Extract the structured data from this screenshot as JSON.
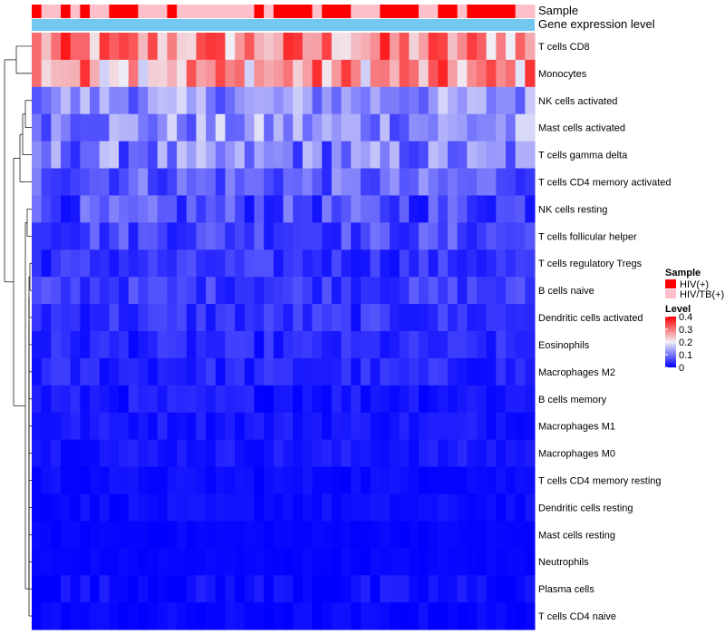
{
  "chart_data": {
    "type": "heatmap",
    "title": "",
    "annotations": {
      "sample_label": "Sample",
      "expression_label": "Gene expression level",
      "sample_groups": [
        "HIV(+)",
        "HIV/TB(+)"
      ],
      "sample_pattern": [
        0,
        1,
        1,
        0,
        1,
        0,
        1,
        1,
        0,
        0,
        0,
        1,
        1,
        1,
        0,
        1,
        1,
        1,
        1,
        1,
        1,
        1,
        1,
        0,
        1,
        0,
        0,
        0,
        0,
        1,
        0,
        0,
        0,
        1,
        1,
        1,
        0,
        0,
        0,
        0,
        1,
        1,
        0,
        0,
        1,
        0,
        0,
        0,
        0,
        0,
        1,
        1
      ],
      "expression_color": "#72c8ef"
    },
    "rows": [
      "T cells CD8",
      "Monocytes",
      "NK cells activated",
      "Mast cells activated",
      "T cells gamma delta",
      "T cells CD4 memory activated",
      "NK cells resting",
      "T cells follicular helper",
      "T cells regulatory  Tregs",
      "B cells naive",
      "Dendritic cells activated",
      "Eosinophils",
      "Macrophages M2",
      "B cells memory",
      "Macrophages M1",
      "Macrophages M0",
      "T cells CD4 memory resting",
      "Dendritic cells resting",
      "Mast cells resting",
      "Neutrophils",
      "Plasma cells",
      "T cells CD4 naive"
    ],
    "n_columns": 52,
    "row_means": [
      0.28,
      0.27,
      0.12,
      0.12,
      0.1,
      0.08,
      0.06,
      0.06,
      0.04,
      0.05,
      0.04,
      0.03,
      0.03,
      0.02,
      0.02,
      0.02,
      0.01,
      0.01,
      0.005,
      0.005,
      0.01,
      0.005
    ],
    "row_spread": [
      0.1,
      0.1,
      0.06,
      0.07,
      0.07,
      0.05,
      0.05,
      0.04,
      0.03,
      0.03,
      0.03,
      0.025,
      0.025,
      0.02,
      0.015,
      0.015,
      0.01,
      0.01,
      0.005,
      0.005,
      0.02,
      0.01
    ],
    "color_scale": {
      "min": 0,
      "mid": 0.2,
      "max": 0.4,
      "low": "#0000ff",
      "mid_color": "#f0f0f8",
      "high": "#ff0000"
    },
    "legend": {
      "sample_title": "Sample",
      "level_title": "Level",
      "ticks": [
        "0.4",
        "0.3",
        "0.2",
        "0.1",
        "0"
      ],
      "tick_values": [
        0.4,
        0.3,
        0.2,
        0.1,
        0
      ],
      "group_colors": [
        "#ff0000",
        "#ffc0cb"
      ]
    }
  }
}
